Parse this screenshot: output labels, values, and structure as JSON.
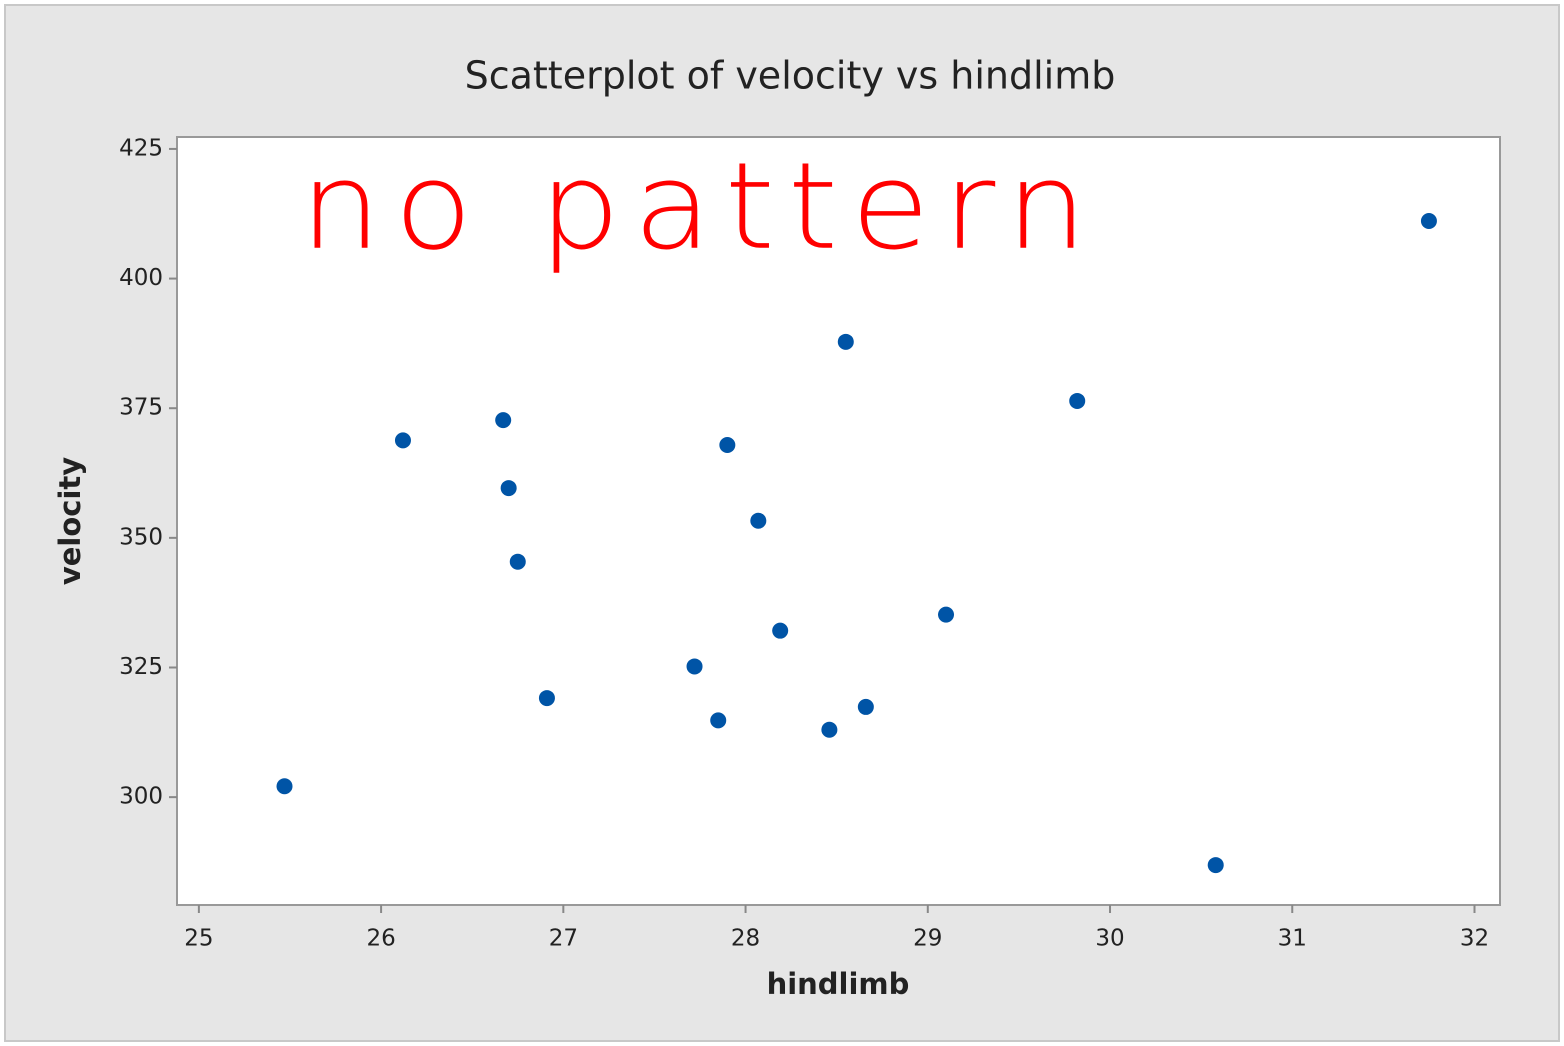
{
  "chart_data": {
    "type": "scatter",
    "title": "Scatterplot of velocity vs hindlimb",
    "x_label": "hindlimb",
    "y_label": "velocity",
    "annotation": "no pattern",
    "color": "#0054a6",
    "x": [
      25.47,
      26.12,
      26.67,
      26.7,
      26.75,
      26.91,
      27.72,
      27.85,
      27.9,
      28.07,
      28.19,
      28.46,
      28.55,
      28.66,
      29.1,
      29.82,
      30.58,
      31.75
    ],
    "values": [
      302.1,
      368.8,
      372.7,
      359.6,
      345.4,
      319.1,
      325.2,
      314.8,
      367.9,
      353.3,
      332.1,
      313.0,
      387.8,
      317.4,
      335.2,
      376.4,
      286.9,
      411.1
    ],
    "xlim": [
      24.88,
      32.14
    ],
    "xticks": [
      25,
      26,
      27,
      28,
      29,
      30,
      31,
      32
    ],
    "ylim": [
      279.2,
      427.3
    ],
    "yticks": [
      300,
      325,
      350,
      375,
      400,
      425
    ]
  }
}
